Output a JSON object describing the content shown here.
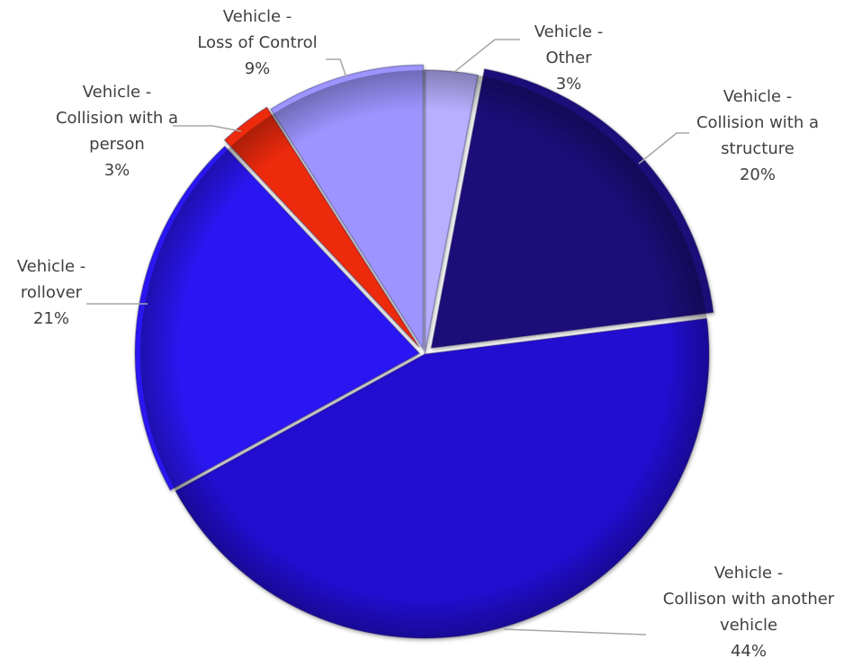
{
  "chart_data": {
    "type": "pie",
    "title": "",
    "slices": [
      {
        "name": "Vehicle - Other",
        "label_lines": [
          "Vehicle -",
          "Other"
        ],
        "pct_label": "3%",
        "value": 3,
        "color": "#b8b0ff"
      },
      {
        "name": "Vehicle - Collision with a structure",
        "label_lines": [
          "Vehicle -",
          "Collision with a",
          "structure"
        ],
        "pct_label": "20%",
        "value": 20,
        "color": "#1a0878"
      },
      {
        "name": "Vehicle - Collison with another vehicle",
        "label_lines": [
          "Vehicle -",
          "Collison with another",
          "vehicle"
        ],
        "pct_label": "44%",
        "value": 44,
        "color": "#2410d0"
      },
      {
        "name": "Vehicle - rollover",
        "label_lines": [
          "Vehicle -",
          "rollover"
        ],
        "pct_label": "21%",
        "value": 21,
        "color": "#2a14f2"
      },
      {
        "name": "Vehicle - Collision with a person",
        "label_lines": [
          "Vehicle -",
          "Collision with a",
          "person"
        ],
        "pct_label": "3%",
        "value": 3,
        "color": "#ee2a10"
      },
      {
        "name": "Vehicle - Loss of Control",
        "label_lines": [
          "Vehicle -",
          "Loss of Control"
        ],
        "pct_label": "9%",
        "value": 9,
        "color": "#9d94ff"
      }
    ],
    "legend": "none",
    "start_angle_deg": 0,
    "direction": "clockwise"
  }
}
